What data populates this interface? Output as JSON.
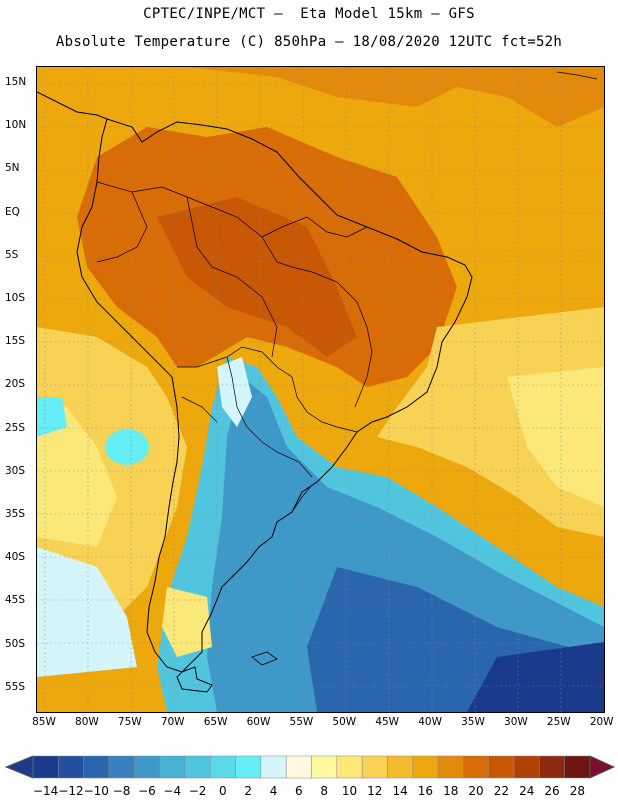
{
  "header": {
    "line1": "CPTEC/INPE/MCT –  Eta Model 15km – GFS",
    "line2": "Absolute Temperature (C) 850hPa – 18/08/2020 12UTC fct=52h"
  },
  "map": {
    "lat_labels": [
      "15N",
      "10N",
      "5N",
      "EQ",
      "5S",
      "10S",
      "15S",
      "20S",
      "25S",
      "30S",
      "35S",
      "40S",
      "45S",
      "50S",
      "55S"
    ],
    "lon_labels": [
      "85W",
      "80W",
      "75W",
      "70W",
      "65W",
      "60W",
      "55W",
      "50W",
      "45W",
      "40W",
      "35W",
      "30W",
      "25W",
      "20W"
    ]
  },
  "colorbar": {
    "labels": [
      "-14",
      "-12",
      "-10",
      "-8",
      "-6",
      "-4",
      "-2",
      "0",
      "2",
      "4",
      "6",
      "8",
      "10",
      "12",
      "14",
      "16",
      "18",
      "20",
      "22",
      "24",
      "26",
      "28"
    ],
    "colors": [
      "#1a3a8c",
      "#22509e",
      "#2a66ae",
      "#3a80be",
      "#3f99c8",
      "#47b0d4",
      "#52c5de",
      "#5cd9e9",
      "#67eef5",
      "#d4f6fb",
      "#fff8e0",
      "#fffaa0",
      "#fbe879",
      "#f7d255",
      "#f2bc2c",
      "#eca80c",
      "#e38a0c",
      "#d86c06",
      "#c85806",
      "#b04006",
      "#8c2a10",
      "#6e1712"
    ],
    "low_color": "#1f3a8c",
    "high_color": "#7a0e2c"
  }
}
